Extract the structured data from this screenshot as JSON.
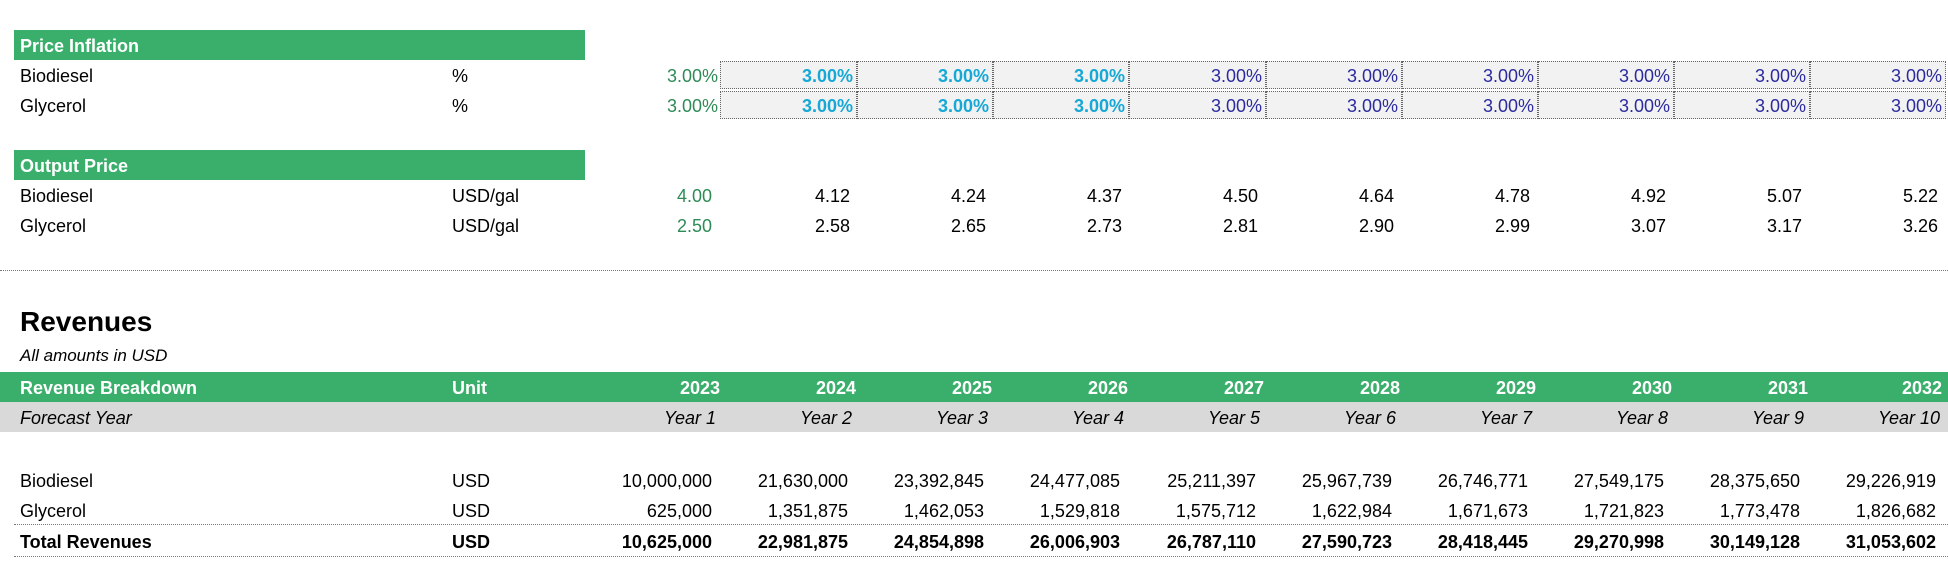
{
  "price_inflation": {
    "header": "Price Inflation",
    "rows": [
      {
        "label": "Biodiesel",
        "unit": "%",
        "base": "3.00%",
        "values": [
          "3.00%",
          "3.00%",
          "3.00%",
          "3.00%",
          "3.00%",
          "3.00%",
          "3.00%",
          "3.00%",
          "3.00%"
        ]
      },
      {
        "label": "Glycerol",
        "unit": "%",
        "base": "3.00%",
        "values": [
          "3.00%",
          "3.00%",
          "3.00%",
          "3.00%",
          "3.00%",
          "3.00%",
          "3.00%",
          "3.00%",
          "3.00%"
        ]
      }
    ]
  },
  "output_price": {
    "header": "Output Price",
    "rows": [
      {
        "label": "Biodiesel",
        "unit": "USD/gal",
        "base": "4.00",
        "values": [
          "4.12",
          "4.24",
          "4.37",
          "4.50",
          "4.64",
          "4.78",
          "4.92",
          "5.07",
          "5.22"
        ]
      },
      {
        "label": "Glycerol",
        "unit": "USD/gal",
        "base": "2.50",
        "values": [
          "2.58",
          "2.65",
          "2.73",
          "2.81",
          "2.90",
          "2.99",
          "3.07",
          "3.17",
          "3.26"
        ]
      }
    ]
  },
  "revenues": {
    "title": "Revenues",
    "subtitle": "All amounts in  USD",
    "header": {
      "label": "Revenue Breakdown",
      "unit": "Unit",
      "years": [
        "2023",
        "2024",
        "2025",
        "2026",
        "2027",
        "2028",
        "2029",
        "2030",
        "2031",
        "2032"
      ]
    },
    "forecast": {
      "label": "Forecast Year",
      "years": [
        "Year 1",
        "Year 2",
        "Year 3",
        "Year 4",
        "Year 5",
        "Year 6",
        "Year 7",
        "Year 8",
        "Year 9",
        "Year 10"
      ]
    },
    "rows": [
      {
        "label": "Biodiesel",
        "unit": "USD",
        "values": [
          "10,000,000",
          "21,630,000",
          "23,392,845",
          "24,477,085",
          "25,211,397",
          "25,967,739",
          "26,746,771",
          "27,549,175",
          "28,375,650",
          "29,226,919"
        ]
      },
      {
        "label": "Glycerol",
        "unit": "USD",
        "values": [
          "625,000",
          "1,351,875",
          "1,462,053",
          "1,529,818",
          "1,575,712",
          "1,622,984",
          "1,671,673",
          "1,721,823",
          "1,773,478",
          "1,826,682"
        ]
      }
    ],
    "total": {
      "label": "Total Revenues",
      "unit": "USD",
      "values": [
        "10,625,000",
        "22,981,875",
        "24,854,898",
        "26,006,903",
        "26,787,110",
        "27,590,723",
        "28,418,445",
        "29,270,998",
        "30,149,128",
        "31,053,602"
      ]
    }
  },
  "colors": {
    "green_band": "#3aaf6b",
    "input_green": "#2e8b57",
    "cyan": "#17a8d6",
    "navy": "#2b2b9f"
  }
}
